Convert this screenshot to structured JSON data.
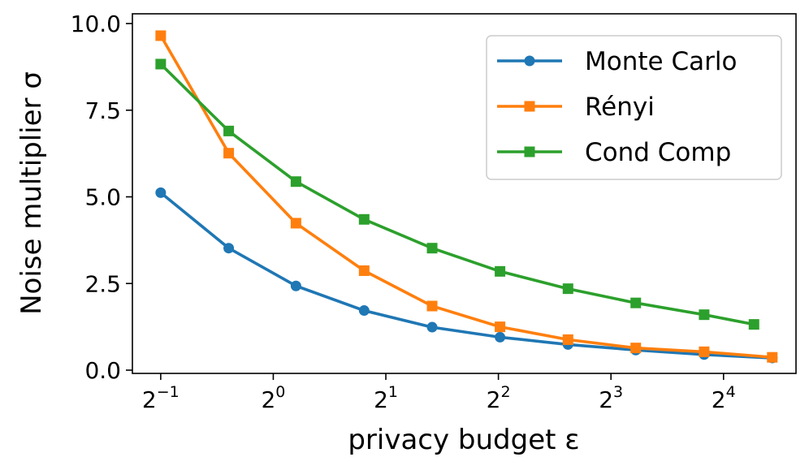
{
  "chart_data": {
    "type": "line",
    "xscale": "log2",
    "xlabel": "privacy budget ε",
    "ylabel": "Noise multiplier σ",
    "ylim": [
      0,
      10
    ],
    "xlim": [
      0.42,
      25
    ],
    "grid": false,
    "legend_position": "top-right",
    "x_ticks": [
      {
        "value": 0.5,
        "base": "2",
        "exp": "−1"
      },
      {
        "value": 1,
        "base": "2",
        "exp": "0"
      },
      {
        "value": 2,
        "base": "2",
        "exp": "1"
      },
      {
        "value": 4,
        "base": "2",
        "exp": "2"
      },
      {
        "value": 8,
        "base": "2",
        "exp": "3"
      },
      {
        "value": 16,
        "base": "2",
        "exp": "4"
      }
    ],
    "y_ticks": [
      {
        "value": 0,
        "label": "0.0"
      },
      {
        "value": 2.5,
        "label": "2.5"
      },
      {
        "value": 5,
        "label": "5.0"
      },
      {
        "value": 7.5,
        "label": "7.5"
      },
      {
        "value": 10,
        "label": "10.0"
      }
    ],
    "series": [
      {
        "name": "Monte Carlo",
        "color": "#1f77b4",
        "marker": "circle",
        "points": [
          [
            0.5,
            5.12
          ],
          [
            0.76,
            3.52
          ],
          [
            1.15,
            2.43
          ],
          [
            1.75,
            1.72
          ],
          [
            2.66,
            1.24
          ],
          [
            4.04,
            0.95
          ],
          [
            6.14,
            0.74
          ],
          [
            9.32,
            0.58
          ],
          [
            14.2,
            0.45
          ],
          [
            21.6,
            0.35
          ]
        ]
      },
      {
        "name": "Rényi",
        "color": "#ff7f0e",
        "marker": "square",
        "points": [
          [
            0.5,
            9.65
          ],
          [
            0.76,
            6.26
          ],
          [
            1.15,
            4.24
          ],
          [
            1.75,
            2.87
          ],
          [
            2.66,
            1.85
          ],
          [
            4.04,
            1.25
          ],
          [
            6.14,
            0.88
          ],
          [
            9.32,
            0.64
          ],
          [
            14.2,
            0.53
          ],
          [
            21.6,
            0.37
          ]
        ]
      },
      {
        "name": "Cond Comp",
        "color": "#2ca02c",
        "marker": "square",
        "points": [
          [
            0.5,
            8.83
          ],
          [
            0.76,
            6.9
          ],
          [
            1.15,
            5.44
          ],
          [
            1.75,
            4.35
          ],
          [
            2.66,
            3.52
          ],
          [
            4.04,
            2.85
          ],
          [
            6.14,
            2.35
          ],
          [
            9.32,
            1.94
          ],
          [
            14.2,
            1.6
          ],
          [
            19.3,
            1.32
          ]
        ]
      }
    ]
  }
}
